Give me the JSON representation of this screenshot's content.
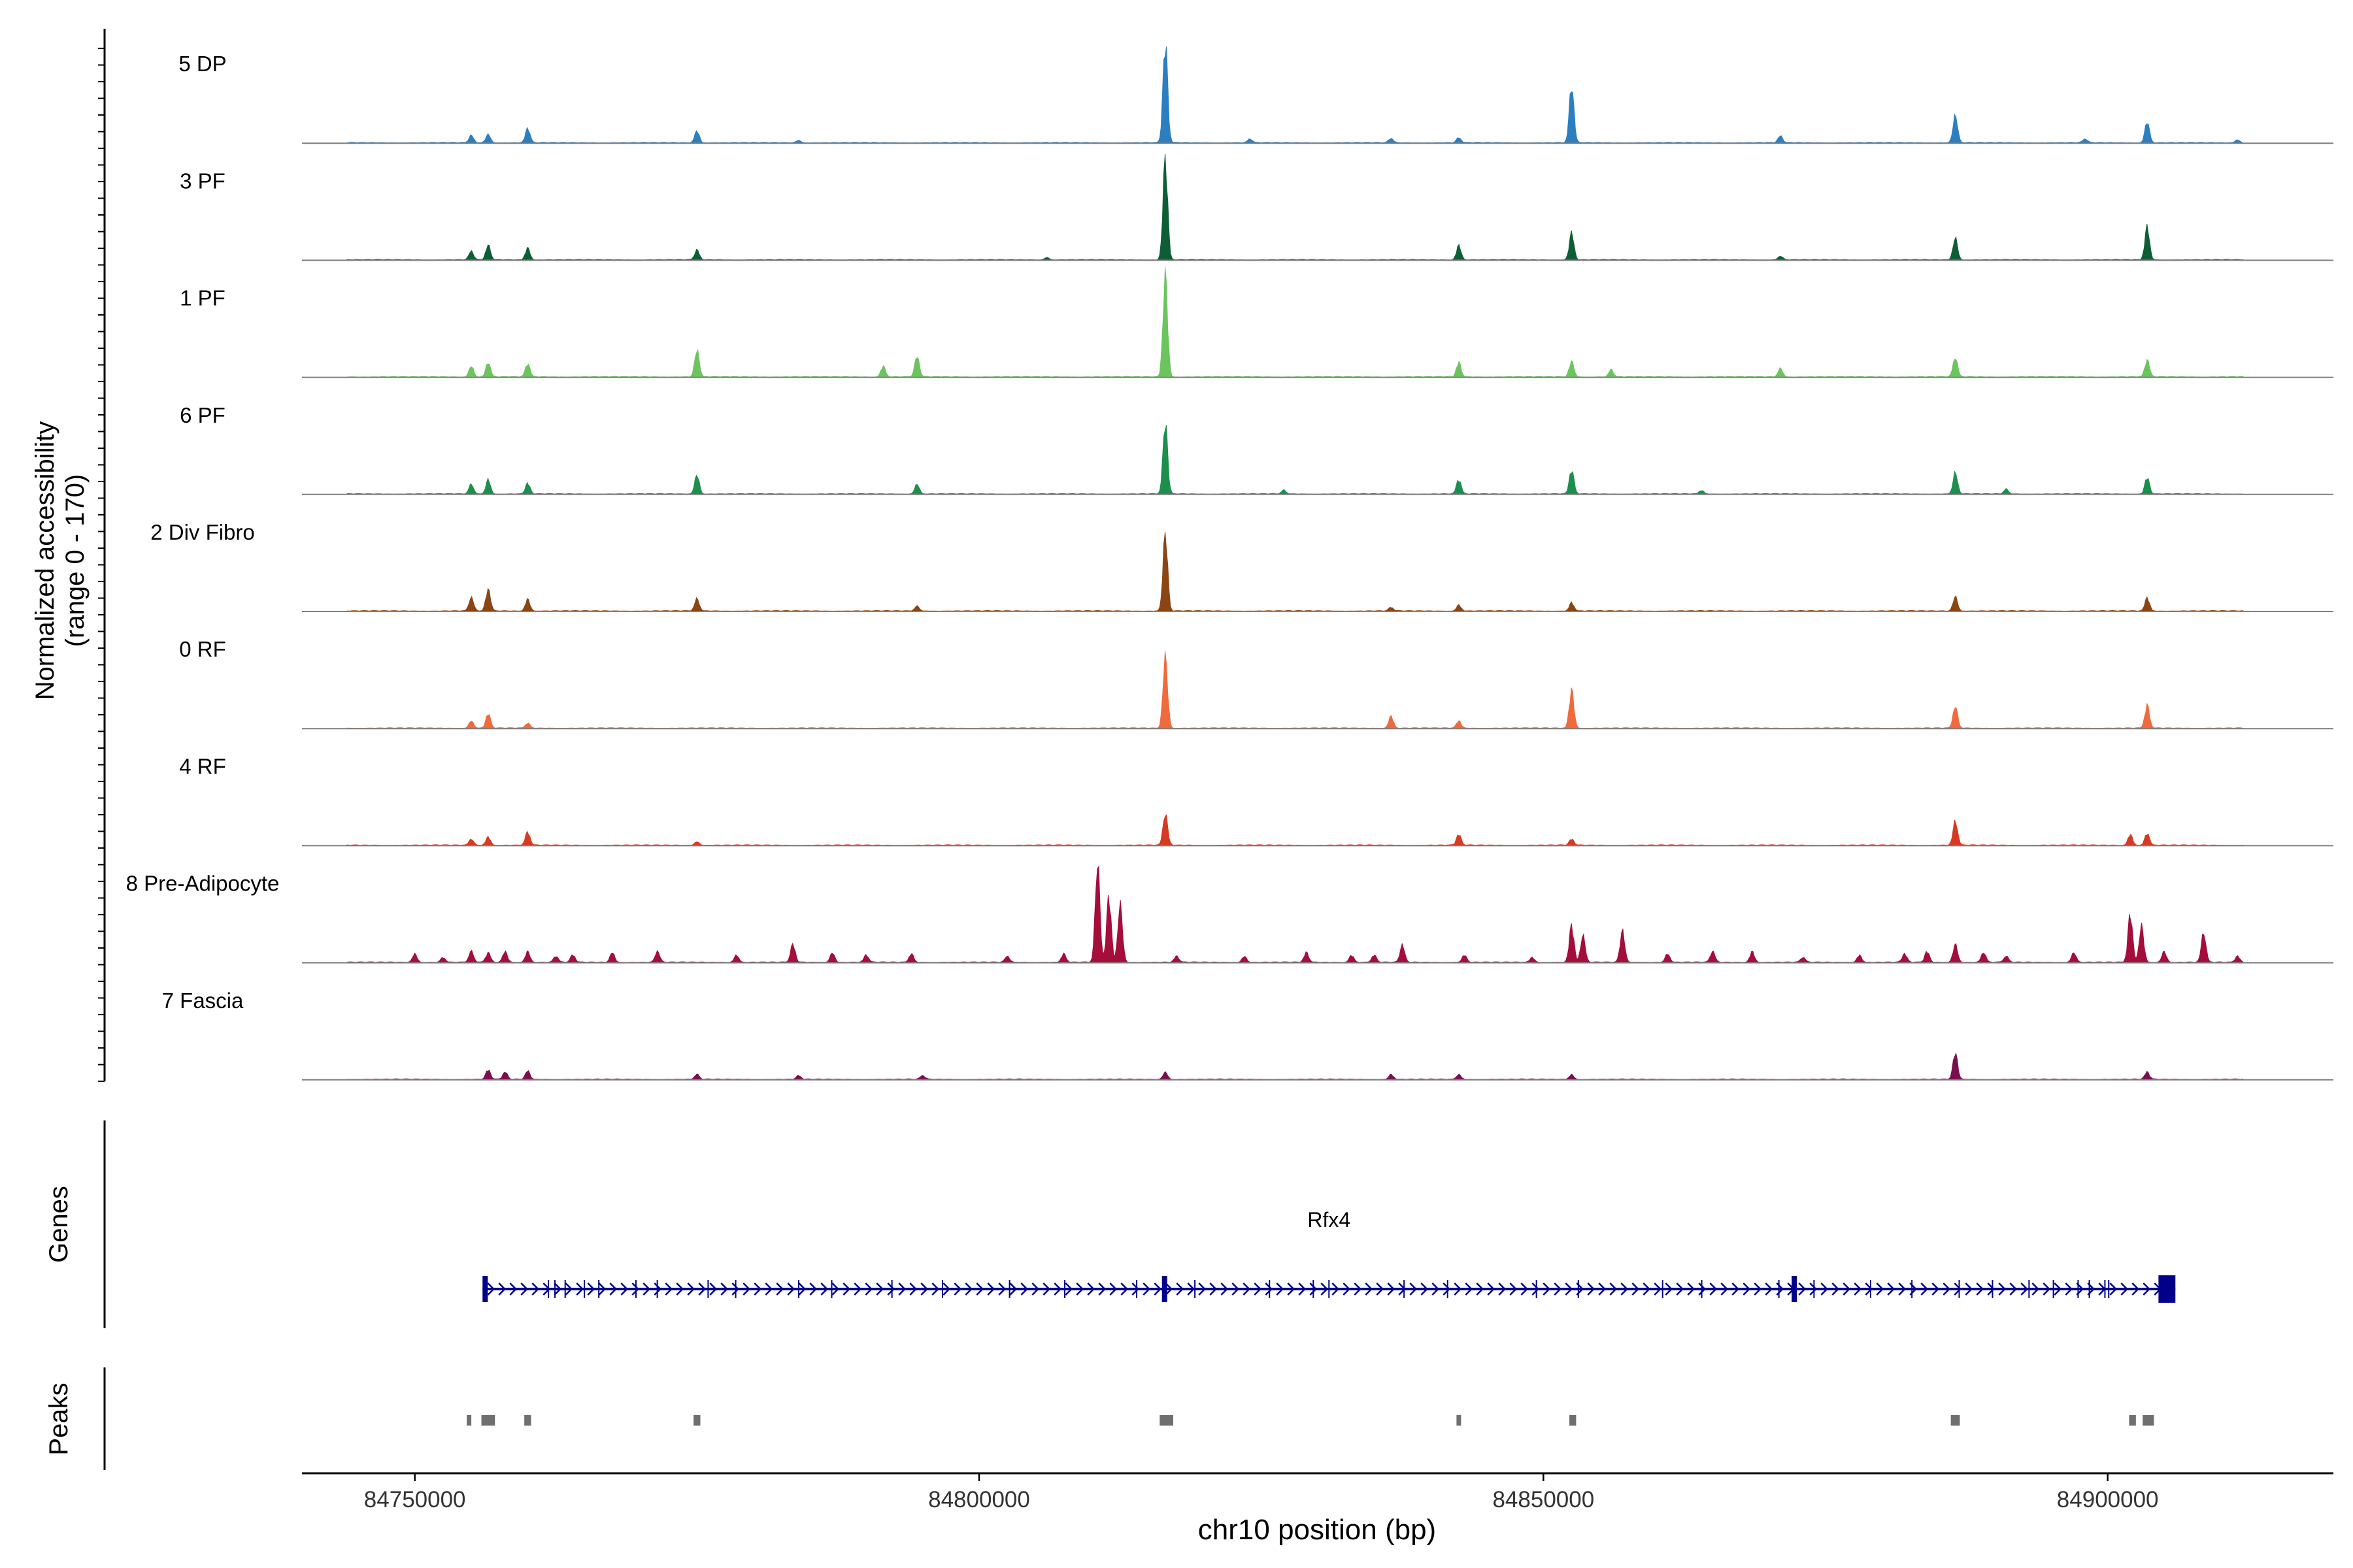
{
  "chart_data": {
    "type": "area",
    "title": "",
    "xlabel": "chr10 position (bp)",
    "ylabel_line1": "Normalized accessibility",
    "ylabel_line2": "(range 0 - 170)",
    "ylim": [
      0,
      170
    ],
    "xlim": [
      84740000,
      84920000
    ],
    "x_ticks": [
      84750000,
      84800000,
      84850000,
      84900000
    ],
    "x_tick_labels": [
      "84750000",
      "84800000",
      "84850000",
      "84900000"
    ],
    "colors": {
      "baseline": "#7f7f7f",
      "axis": "#000000",
      "gene": "#00008b",
      "peak": "#6f6f6f",
      "text": "#000000",
      "tick_text": "#333333"
    },
    "series": [
      {
        "name": "5 DP",
        "color": "#2b7fc1",
        "peaks": [
          [
            84755000,
            12
          ],
          [
            84756500,
            14
          ],
          [
            84760000,
            24
          ],
          [
            84775000,
            20
          ],
          [
            84784000,
            4
          ],
          [
            84816500,
            170
          ],
          [
            84824000,
            6
          ],
          [
            84836500,
            7
          ],
          [
            84842500,
            8
          ],
          [
            84852500,
            95
          ],
          [
            84871000,
            11
          ],
          [
            84886500,
            45
          ],
          [
            84898000,
            6
          ],
          [
            84903500,
            35
          ],
          [
            84911500,
            5
          ]
        ]
      },
      {
        "name": "3 PF",
        "color": "#0d5e34",
        "peaks": [
          [
            84755000,
            14
          ],
          [
            84756500,
            24
          ],
          [
            84760000,
            20
          ],
          [
            84775000,
            16
          ],
          [
            84806000,
            4
          ],
          [
            84816500,
            170
          ],
          [
            84842500,
            24
          ],
          [
            84852500,
            45
          ],
          [
            84871000,
            6
          ],
          [
            84886500,
            36
          ],
          [
            84903500,
            55
          ]
        ]
      },
      {
        "name": "1 PF",
        "color": "#6cc45f",
        "peaks": [
          [
            84755000,
            18
          ],
          [
            84756500,
            24
          ],
          [
            84760000,
            22
          ],
          [
            84775000,
            44
          ],
          [
            84791500,
            18
          ],
          [
            84794500,
            34
          ],
          [
            84816500,
            170
          ],
          [
            84842500,
            24
          ],
          [
            84852500,
            26
          ],
          [
            84856000,
            12
          ],
          [
            84871000,
            14
          ],
          [
            84886500,
            32
          ],
          [
            84903500,
            28
          ]
        ]
      },
      {
        "name": "6 PF",
        "color": "#1c8f4c",
        "peaks": [
          [
            84755000,
            16
          ],
          [
            84756500,
            24
          ],
          [
            84760000,
            18
          ],
          [
            84775000,
            32
          ],
          [
            84794500,
            16
          ],
          [
            84816500,
            120
          ],
          [
            84827000,
            6
          ],
          [
            84842500,
            24
          ],
          [
            84852500,
            40
          ],
          [
            84864000,
            6
          ],
          [
            84886500,
            35
          ],
          [
            84891000,
            8
          ],
          [
            84903500,
            28
          ]
        ]
      },
      {
        "name": "2 Div Fibro",
        "color": "#8b4513",
        "peaks": [
          [
            84755000,
            22
          ],
          [
            84756500,
            36
          ],
          [
            84760000,
            20
          ],
          [
            84775000,
            20
          ],
          [
            84794500,
            8
          ],
          [
            84816500,
            130
          ],
          [
            84836500,
            6
          ],
          [
            84842500,
            10
          ],
          [
            84852500,
            14
          ],
          [
            84886500,
            24
          ],
          [
            84903500,
            22
          ]
        ]
      },
      {
        "name": "0 RF",
        "color": "#ef6a3c",
        "peaks": [
          [
            84755000,
            12
          ],
          [
            84756500,
            24
          ],
          [
            84760000,
            8
          ],
          [
            84816500,
            118
          ],
          [
            84836500,
            20
          ],
          [
            84842500,
            12
          ],
          [
            84852500,
            64
          ],
          [
            84886500,
            36
          ],
          [
            84903500,
            38
          ]
        ]
      },
      {
        "name": "4 RF",
        "color": "#d73a22",
        "peaks": [
          [
            84755000,
            10
          ],
          [
            84756500,
            14
          ],
          [
            84760000,
            22
          ],
          [
            84775000,
            6
          ],
          [
            84816500,
            52
          ],
          [
            84842500,
            18
          ],
          [
            84852500,
            10
          ],
          [
            84886500,
            40
          ],
          [
            84902000,
            18
          ],
          [
            84903500,
            20
          ]
        ]
      },
      {
        "name": "8 Pre-Adipocyte",
        "color": "#a50d3a",
        "peaks": [
          [
            84750000,
            14
          ],
          [
            84752500,
            8
          ],
          [
            84755000,
            18
          ],
          [
            84756500,
            16
          ],
          [
            84758000,
            18
          ],
          [
            84760000,
            18
          ],
          [
            84762500,
            10
          ],
          [
            84764000,
            12
          ],
          [
            84767500,
            16
          ],
          [
            84771500,
            18
          ],
          [
            84778500,
            12
          ],
          [
            84783500,
            30
          ],
          [
            84787000,
            16
          ],
          [
            84790000,
            12
          ],
          [
            84794000,
            14
          ],
          [
            84802500,
            10
          ],
          [
            84807500,
            14
          ],
          [
            84810500,
            165
          ],
          [
            84811500,
            110
          ],
          [
            84812500,
            95
          ],
          [
            84817500,
            10
          ],
          [
            84823500,
            10
          ],
          [
            84829000,
            16
          ],
          [
            84833000,
            12
          ],
          [
            84835000,
            12
          ],
          [
            84837500,
            28
          ],
          [
            84843000,
            12
          ],
          [
            84849000,
            8
          ],
          [
            84852500,
            62
          ],
          [
            84853500,
            44
          ],
          [
            84857000,
            52
          ],
          [
            84861000,
            14
          ],
          [
            84865000,
            18
          ],
          [
            84868500,
            18
          ],
          [
            84873000,
            8
          ],
          [
            84878000,
            12
          ],
          [
            84882000,
            14
          ],
          [
            84884000,
            18
          ],
          [
            84886500,
            30
          ],
          [
            84889000,
            16
          ],
          [
            84891000,
            10
          ],
          [
            84897000,
            16
          ],
          [
            84902000,
            80
          ],
          [
            84903000,
            60
          ],
          [
            84905000,
            18
          ],
          [
            84908500,
            48
          ],
          [
            84911500,
            10
          ]
        ]
      },
      {
        "name": "7 Fascia",
        "color": "#7a0f4e",
        "peaks": [
          [
            84756500,
            16
          ],
          [
            84758000,
            12
          ],
          [
            84760000,
            14
          ],
          [
            84775000,
            8
          ],
          [
            84784000,
            6
          ],
          [
            84795000,
            6
          ],
          [
            84816500,
            12
          ],
          [
            84836500,
            8
          ],
          [
            84842500,
            8
          ],
          [
            84852500,
            8
          ],
          [
            84886500,
            44
          ],
          [
            84903500,
            12
          ]
        ]
      }
    ],
    "genes": [
      {
        "name": "Rfx4",
        "start": 84756000,
        "end": 84906000,
        "strand": "+",
        "exons": [
          [
            84756000,
            84756300
          ],
          [
            84816200,
            84816350
          ],
          [
            84872000,
            84872300
          ],
          [
            84904500,
            84906000
          ]
        ]
      }
    ],
    "gene_panel_label": "Genes",
    "peaks_panel_label": "Peaks",
    "peak_regions": [
      [
        84754600,
        84755000
      ],
      [
        84755900,
        84757100
      ],
      [
        84759700,
        84760300
      ],
      [
        84774700,
        84775300
      ],
      [
        84816000,
        84817200
      ],
      [
        84842300,
        84842700
      ],
      [
        84852300,
        84852900
      ],
      [
        84886100,
        84886900
      ],
      [
        84901900,
        84902500
      ],
      [
        84903100,
        84904100
      ]
    ]
  }
}
